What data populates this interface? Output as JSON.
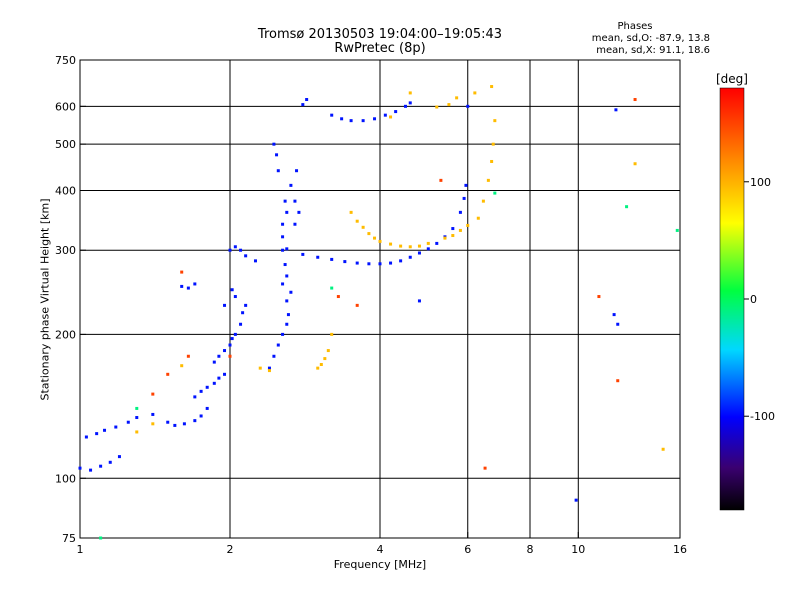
{
  "chart_data": {
    "type": "scatter",
    "title": "Tromsø 20130503 19:04:00–19:05:43",
    "subtitle": "RwPretec (8p)",
    "stats": {
      "heading": "Phases",
      "line_o": "mean, sd,O: -87.9, 13.8",
      "line_x": "mean, sd,X:  91.1, 18.6"
    },
    "xlabel": "Frequency [MHz]",
    "ylabel": "Stationary phase Virtual Height [km]",
    "x_scale": "log",
    "y_scale": "log",
    "xlim": [
      1,
      16
    ],
    "ylim": [
      75,
      750
    ],
    "x_ticks": [
      1,
      2,
      4,
      6,
      8,
      10,
      16
    ],
    "y_ticks": [
      75,
      100,
      200,
      300,
      400,
      500,
      600,
      750
    ],
    "x_grid": [
      2,
      4,
      6,
      8,
      10
    ],
    "y_grid": [
      100,
      200,
      300,
      400,
      500,
      600
    ],
    "grid": true,
    "colorbar": {
      "label": "[deg]",
      "range": [
        -180,
        180
      ],
      "ticks": [
        100,
        0,
        -100
      ]
    },
    "series": [
      {
        "phase_deg": -95,
        "points": [
          [
            1.0,
            105
          ],
          [
            1.05,
            104
          ],
          [
            1.1,
            106
          ],
          [
            1.15,
            108
          ],
          [
            1.2,
            111
          ],
          [
            1.03,
            122
          ],
          [
            1.08,
            124
          ],
          [
            1.12,
            126
          ],
          [
            1.18,
            128
          ],
          [
            1.25,
            131
          ],
          [
            1.3,
            134
          ],
          [
            1.4,
            136
          ],
          [
            1.5,
            131
          ],
          [
            1.55,
            129
          ],
          [
            1.62,
            130
          ],
          [
            1.7,
            132
          ],
          [
            1.75,
            135
          ],
          [
            1.8,
            140
          ],
          [
            1.7,
            148
          ],
          [
            1.75,
            152
          ],
          [
            1.8,
            155
          ],
          [
            1.86,
            158
          ],
          [
            1.9,
            162
          ],
          [
            1.95,
            165
          ],
          [
            1.86,
            175
          ],
          [
            1.9,
            180
          ],
          [
            1.95,
            185
          ],
          [
            2.0,
            190
          ],
          [
            2.02,
            196
          ],
          [
            2.05,
            200
          ],
          [
            2.1,
            210
          ],
          [
            2.12,
            222
          ],
          [
            2.15,
            230
          ],
          [
            2.05,
            240
          ],
          [
            2.02,
            248
          ],
          [
            1.95,
            230
          ],
          [
            2.0,
            300
          ],
          [
            2.05,
            305
          ],
          [
            2.1,
            300
          ],
          [
            2.15,
            292
          ],
          [
            2.25,
            285
          ],
          [
            2.4,
            170
          ],
          [
            2.45,
            180
          ],
          [
            2.5,
            190
          ],
          [
            2.55,
            200
          ],
          [
            2.6,
            210
          ],
          [
            2.62,
            220
          ],
          [
            2.6,
            235
          ],
          [
            2.65,
            245
          ],
          [
            2.55,
            255
          ],
          [
            2.6,
            265
          ],
          [
            2.58,
            280
          ],
          [
            2.55,
            300
          ],
          [
            2.55,
            320
          ],
          [
            2.55,
            340
          ],
          [
            2.6,
            360
          ],
          [
            2.58,
            380
          ],
          [
            2.5,
            440
          ],
          [
            2.48,
            475
          ],
          [
            2.45,
            500
          ],
          [
            2.7,
            340
          ],
          [
            2.75,
            360
          ],
          [
            2.7,
            380
          ],
          [
            2.65,
            410
          ],
          [
            2.72,
            440
          ],
          [
            2.6,
            302
          ],
          [
            2.8,
            294
          ],
          [
            3.0,
            290
          ],
          [
            3.2,
            287
          ],
          [
            3.4,
            284
          ],
          [
            3.6,
            282
          ],
          [
            3.8,
            281
          ],
          [
            4.0,
            281
          ],
          [
            4.2,
            282
          ],
          [
            4.4,
            285
          ],
          [
            4.6,
            290
          ],
          [
            4.8,
            296
          ],
          [
            5.0,
            302
          ],
          [
            5.2,
            310
          ],
          [
            5.4,
            320
          ],
          [
            5.6,
            333
          ],
          [
            5.8,
            360
          ],
          [
            5.9,
            385
          ],
          [
            5.95,
            410
          ],
          [
            1.6,
            252
          ],
          [
            1.65,
            250
          ],
          [
            1.7,
            255
          ],
          [
            2.8,
            605
          ],
          [
            2.85,
            620
          ],
          [
            3.2,
            575
          ],
          [
            3.35,
            565
          ],
          [
            3.5,
            560
          ],
          [
            3.7,
            560
          ],
          [
            3.9,
            565
          ],
          [
            4.1,
            575
          ],
          [
            4.3,
            585
          ],
          [
            4.5,
            600
          ],
          [
            4.6,
            610
          ],
          [
            4.8,
            235
          ],
          [
            6.0,
            600
          ],
          [
            9.9,
            90
          ],
          [
            11.9,
            590
          ],
          [
            12.0,
            210
          ],
          [
            11.8,
            220
          ]
        ]
      },
      {
        "phase_deg": 95,
        "points": [
          [
            3.5,
            360
          ],
          [
            3.6,
            345
          ],
          [
            3.7,
            335
          ],
          [
            3.8,
            325
          ],
          [
            3.9,
            318
          ],
          [
            4.0,
            313
          ],
          [
            4.2,
            309
          ],
          [
            4.4,
            306
          ],
          [
            4.6,
            305
          ],
          [
            4.8,
            306
          ],
          [
            5.0,
            310
          ],
          [
            5.4,
            318
          ],
          [
            5.6,
            322
          ],
          [
            5.8,
            330
          ],
          [
            6.0,
            338
          ],
          [
            6.3,
            350
          ],
          [
            6.45,
            380
          ],
          [
            6.6,
            420
          ],
          [
            6.7,
            460
          ],
          [
            6.75,
            500
          ],
          [
            6.8,
            560
          ],
          [
            6.7,
            660
          ],
          [
            3.0,
            170
          ],
          [
            3.05,
            173
          ],
          [
            3.1,
            178
          ],
          [
            3.15,
            185
          ],
          [
            3.2,
            200
          ],
          [
            5.2,
            598
          ],
          [
            5.5,
            605
          ],
          [
            5.7,
            625
          ],
          [
            6.2,
            640
          ],
          [
            4.6,
            640
          ],
          [
            4.2,
            570
          ],
          [
            1.3,
            125
          ],
          [
            1.4,
            130
          ],
          [
            1.6,
            172
          ],
          [
            2.3,
            170
          ],
          [
            2.4,
            168
          ],
          [
            13.0,
            455
          ],
          [
            14.8,
            115
          ]
        ]
      },
      {
        "phase_deg": 150,
        "points": [
          [
            1.6,
            270
          ],
          [
            1.65,
            180
          ],
          [
            2.0,
            180
          ],
          [
            1.5,
            165
          ],
          [
            1.4,
            150
          ],
          [
            3.3,
            240
          ],
          [
            3.6,
            230
          ],
          [
            5.3,
            420
          ],
          [
            6.5,
            105
          ],
          [
            11.0,
            240
          ],
          [
            12.0,
            160
          ],
          [
            13.0,
            620
          ]
        ]
      },
      {
        "phase_deg": -10,
        "points": [
          [
            1.1,
            75
          ],
          [
            1.3,
            140
          ],
          [
            3.2,
            250
          ],
          [
            6.8,
            395
          ],
          [
            12.5,
            370
          ],
          [
            15.8,
            330
          ]
        ]
      }
    ]
  }
}
